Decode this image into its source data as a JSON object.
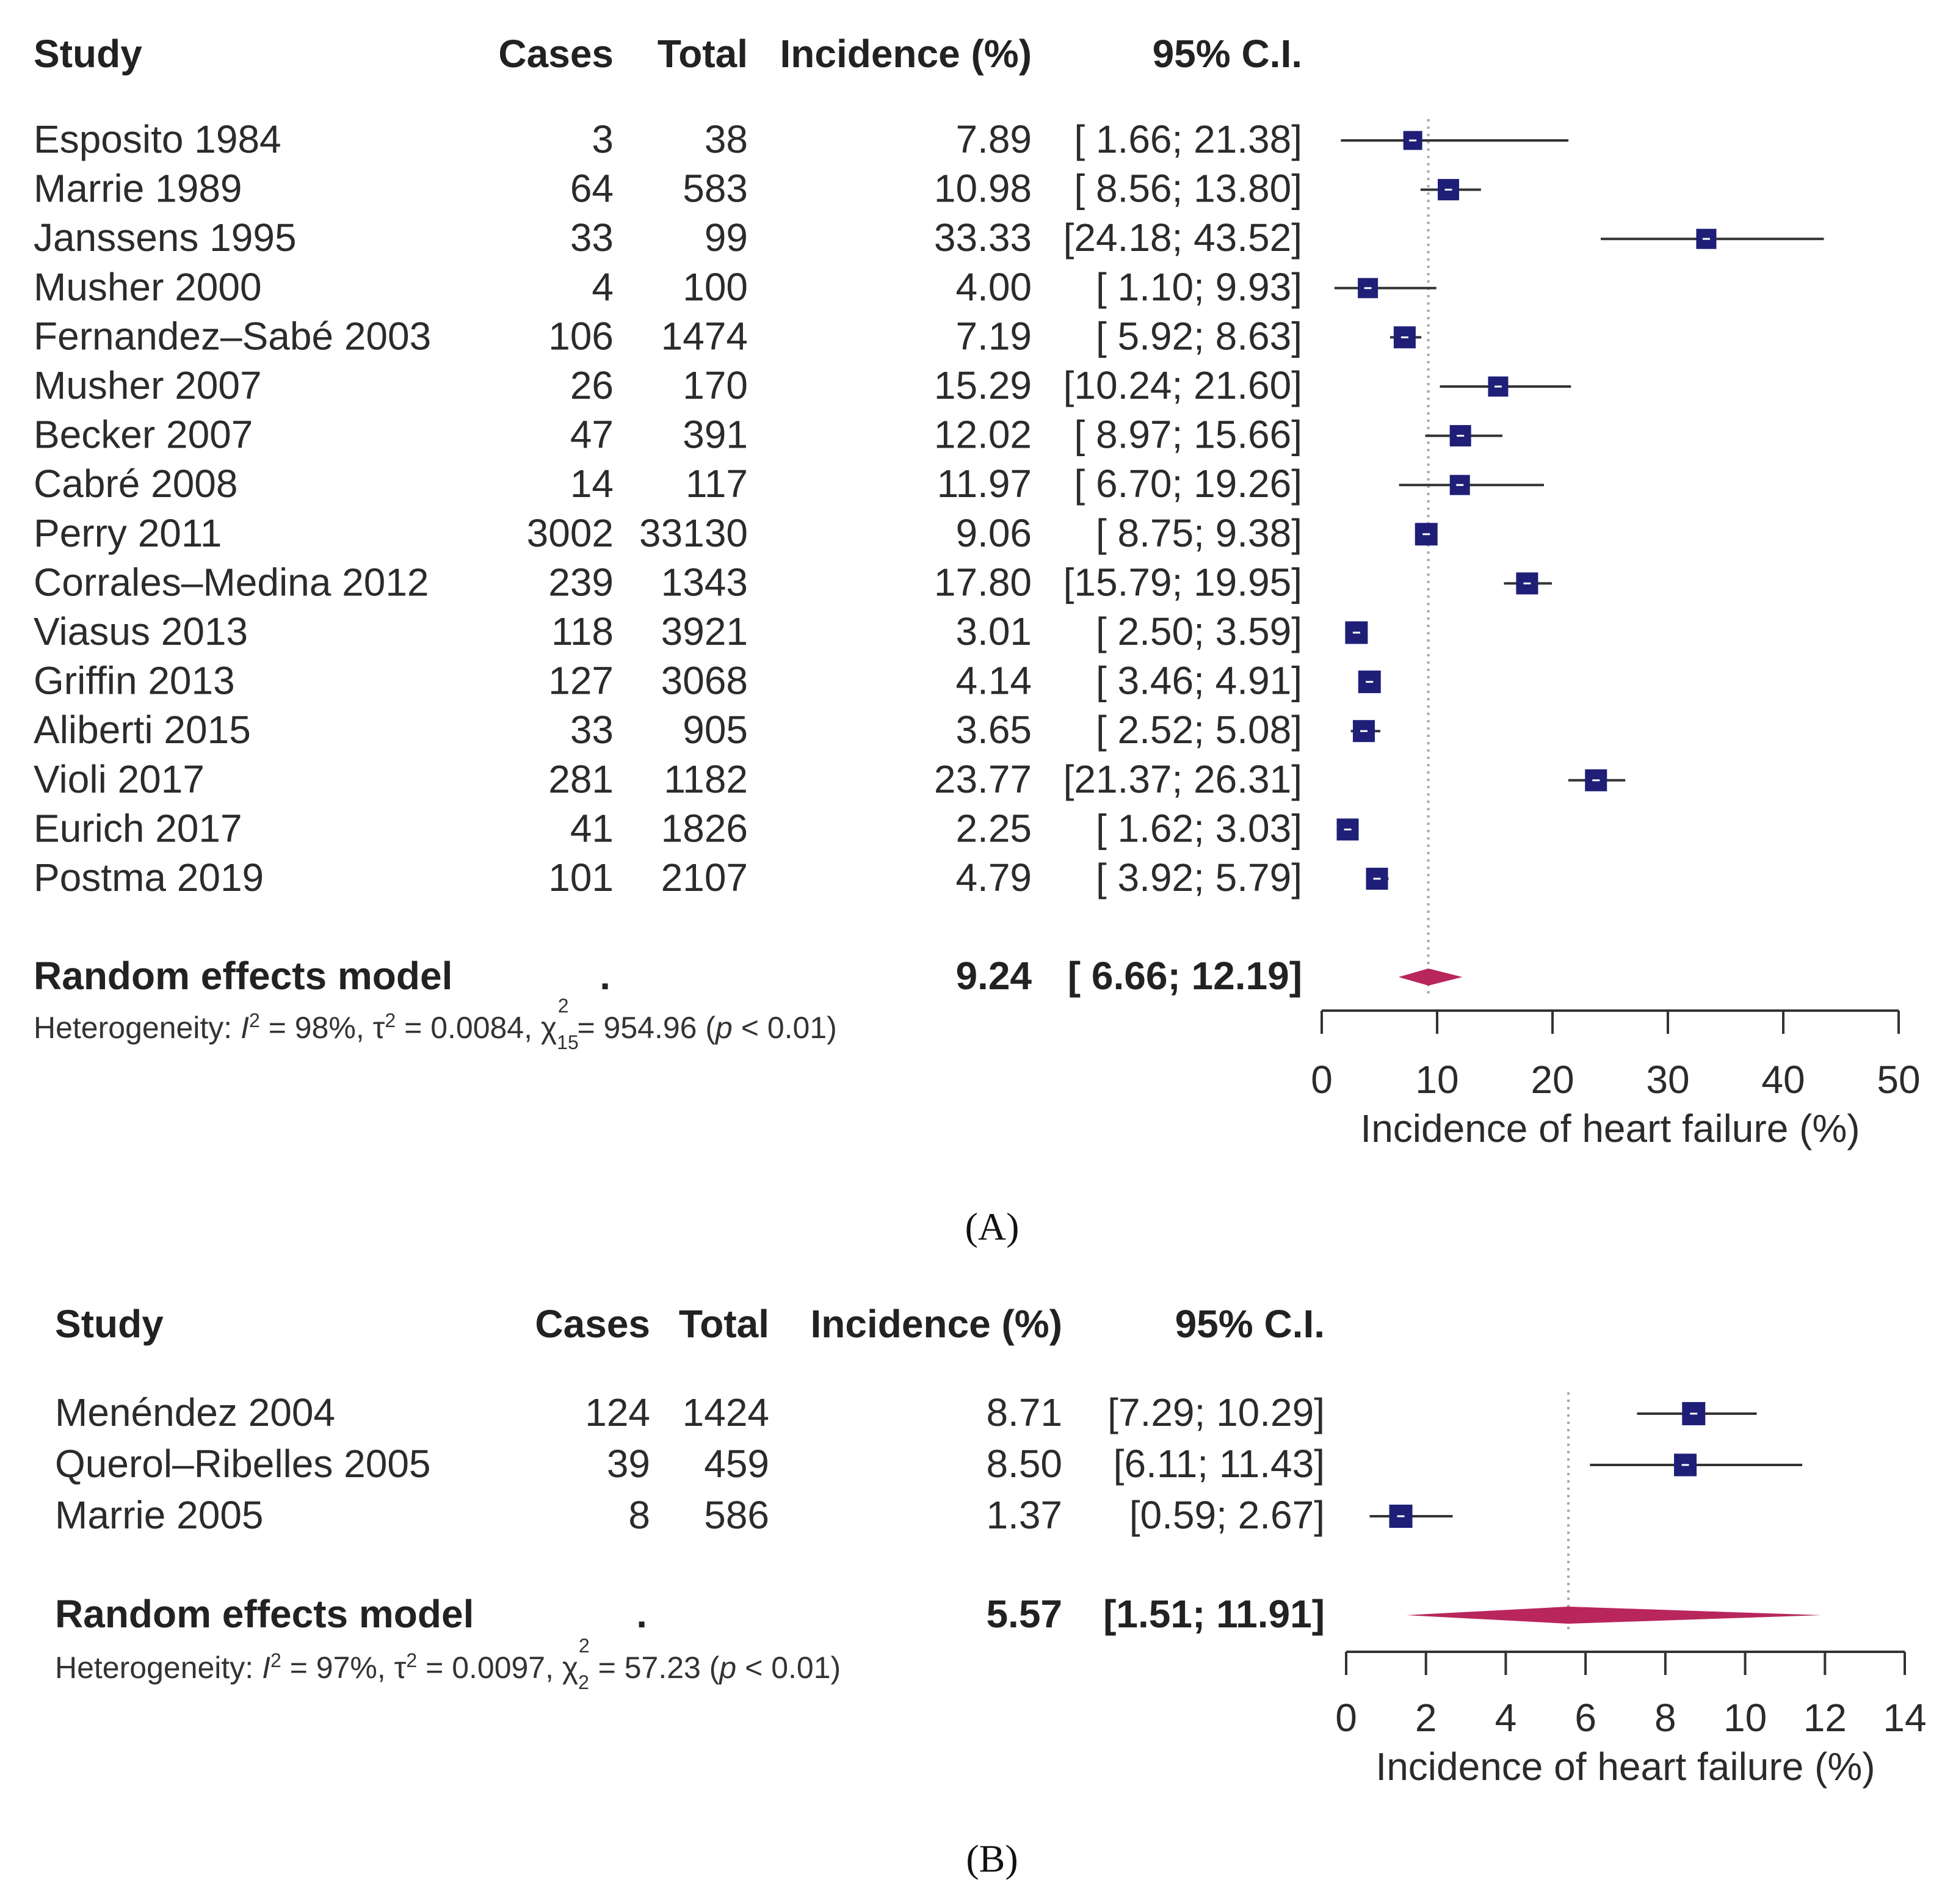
{
  "chart_data": [
    {
      "type": "forest",
      "panel_label": "(A)",
      "columns": [
        "Study",
        "Cases",
        "Total",
        "Incidence (%)",
        "95% C.I."
      ],
      "rows": [
        {
          "study": "Esposito 1984",
          "cases": "3",
          "total": "38",
          "inc_text": "7.89",
          "ci_text": "[ 1.66; 21.38]",
          "value": 7.89,
          "lo": 1.66,
          "hi": 21.38,
          "weight": 0.45
        },
        {
          "study": "Marrie 1989",
          "cases": "64",
          "total": "583",
          "inc_text": "10.98",
          "ci_text": "[ 8.56; 13.80]",
          "value": 10.98,
          "lo": 8.56,
          "hi": 13.8,
          "weight": 0.65
        },
        {
          "study": "Janssens 1995",
          "cases": "33",
          "total": "99",
          "inc_text": "33.33",
          "ci_text": "[24.18; 43.52]",
          "value": 33.33,
          "lo": 24.18,
          "hi": 43.52,
          "weight": 0.55
        },
        {
          "study": "Musher 2000",
          "cases": "4",
          "total": "100",
          "inc_text": "4.00",
          "ci_text": "[ 1.10; 9.93]",
          "value": 4.0,
          "lo": 1.1,
          "hi": 9.93,
          "weight": 0.55
        },
        {
          "study": "Fernandez–Sabé 2003",
          "cases": "106",
          "total": "1474",
          "inc_text": "7.19",
          "ci_text": "[ 5.92; 8.63]",
          "value": 7.19,
          "lo": 5.92,
          "hi": 8.63,
          "weight": 0.7
        },
        {
          "study": "Musher 2007",
          "cases": "26",
          "total": "170",
          "inc_text": "15.29",
          "ci_text": "[10.24; 21.60]",
          "value": 15.29,
          "lo": 10.24,
          "hi": 21.6,
          "weight": 0.55
        },
        {
          "study": "Becker 2007",
          "cases": "47",
          "total": "391",
          "inc_text": "12.02",
          "ci_text": "[ 8.97; 15.66]",
          "value": 12.02,
          "lo": 8.97,
          "hi": 15.66,
          "weight": 0.65
        },
        {
          "study": "Cabré 2008",
          "cases": "14",
          "total": "117",
          "inc_text": "11.97",
          "ci_text": "[ 6.70; 19.26]",
          "value": 11.97,
          "lo": 6.7,
          "hi": 19.26,
          "weight": 0.55
        },
        {
          "study": "Perry 2011",
          "cases": "3002",
          "total": "33130",
          "inc_text": "9.06",
          "ci_text": "[ 8.75; 9.38]",
          "value": 9.06,
          "lo": 8.75,
          "hi": 9.38,
          "weight": 0.75
        },
        {
          "study": "Corrales–Medina 2012",
          "cases": "239",
          "total": "1343",
          "inc_text": "17.80",
          "ci_text": "[15.79; 19.95]",
          "value": 17.8,
          "lo": 15.79,
          "hi": 19.95,
          "weight": 0.7
        },
        {
          "study": "Viasus 2013",
          "cases": "118",
          "total": "3921",
          "inc_text": "3.01",
          "ci_text": "[ 2.50; 3.59]",
          "value": 3.01,
          "lo": 2.5,
          "hi": 3.59,
          "weight": 0.75
        },
        {
          "study": "Griffin 2013",
          "cases": "127",
          "total": "3068",
          "inc_text": "4.14",
          "ci_text": "[ 3.46; 4.91]",
          "value": 4.14,
          "lo": 3.46,
          "hi": 4.91,
          "weight": 0.75
        },
        {
          "study": "Aliberti 2015",
          "cases": "33",
          "total": "905",
          "inc_text": "3.65",
          "ci_text": "[ 2.52; 5.08]",
          "value": 3.65,
          "lo": 2.52,
          "hi": 5.08,
          "weight": 0.7
        },
        {
          "study": "Violi 2017",
          "cases": "281",
          "total": "1182",
          "inc_text": "23.77",
          "ci_text": "[21.37; 26.31]",
          "value": 23.77,
          "lo": 21.37,
          "hi": 26.31,
          "weight": 0.7
        },
        {
          "study": "Eurich 2017",
          "cases": "41",
          "total": "1826",
          "inc_text": "2.25",
          "ci_text": "[ 1.62; 3.03]",
          "value": 2.25,
          "lo": 1.62,
          "hi": 3.03,
          "weight": 0.7
        },
        {
          "study": "Postma 2019",
          "cases": "101",
          "total": "2107",
          "inc_text": "4.79",
          "ci_text": "[ 3.92; 5.79]",
          "value": 4.79,
          "lo": 3.92,
          "hi": 5.79,
          "weight": 0.7
        }
      ],
      "pooled": {
        "label": "Random effects model",
        "cases": ".",
        "inc_text": "9.24",
        "ci_text": "[ 6.66; 12.19]",
        "value": 9.24,
        "lo": 6.66,
        "hi": 12.19
      },
      "heterogeneity": {
        "i2": "98%",
        "tau2": "0.0084",
        "chi2_df": "15",
        "chi2": "954.96",
        "p": "0.01"
      },
      "xlim": [
        0,
        50
      ],
      "ticks": [
        0,
        10,
        20,
        30,
        40,
        50
      ],
      "xlabel": "Incidence of heart failure (%)",
      "square_color": "#1f1f78",
      "diamond_color": "#b8265c"
    },
    {
      "type": "forest",
      "panel_label": "(B)",
      "columns": [
        "Study",
        "Cases",
        "Total",
        "Incidence (%)",
        "95% C.I."
      ],
      "rows": [
        {
          "study": "Menéndez 2004",
          "cases": "124",
          "total": "1424",
          "inc_text": "8.71",
          "ci_text": "[7.29; 10.29]",
          "value": 8.71,
          "lo": 7.29,
          "hi": 10.29,
          "weight": 0.8
        },
        {
          "study": "Querol–Ribelles 2005",
          "cases": "39",
          "total": "459",
          "inc_text": "8.50",
          "ci_text": "[6.11; 11.43]",
          "value": 8.5,
          "lo": 6.11,
          "hi": 11.43,
          "weight": 0.75
        },
        {
          "study": "Marrie 2005",
          "cases": "8",
          "total": "586",
          "inc_text": "1.37",
          "ci_text": "[0.59;  2.67]",
          "value": 1.37,
          "lo": 0.59,
          "hi": 2.67,
          "weight": 0.8
        }
      ],
      "pooled": {
        "label": "Random effects model",
        "cases": ".",
        "inc_text": "5.57",
        "ci_text": "[1.51; 11.91]",
        "value": 5.57,
        "lo": 1.51,
        "hi": 11.91
      },
      "heterogeneity": {
        "i2": "97%",
        "tau2": "0.0097",
        "chi2_df": "2",
        "chi2": "57.23",
        "p": "0.01"
      },
      "xlim": [
        0,
        14
      ],
      "ticks": [
        0,
        2,
        4,
        6,
        8,
        10,
        12,
        14
      ],
      "xlabel": "Incidence of heart failure (%)",
      "square_color": "#1f1f78",
      "diamond_color": "#b8265c"
    }
  ]
}
